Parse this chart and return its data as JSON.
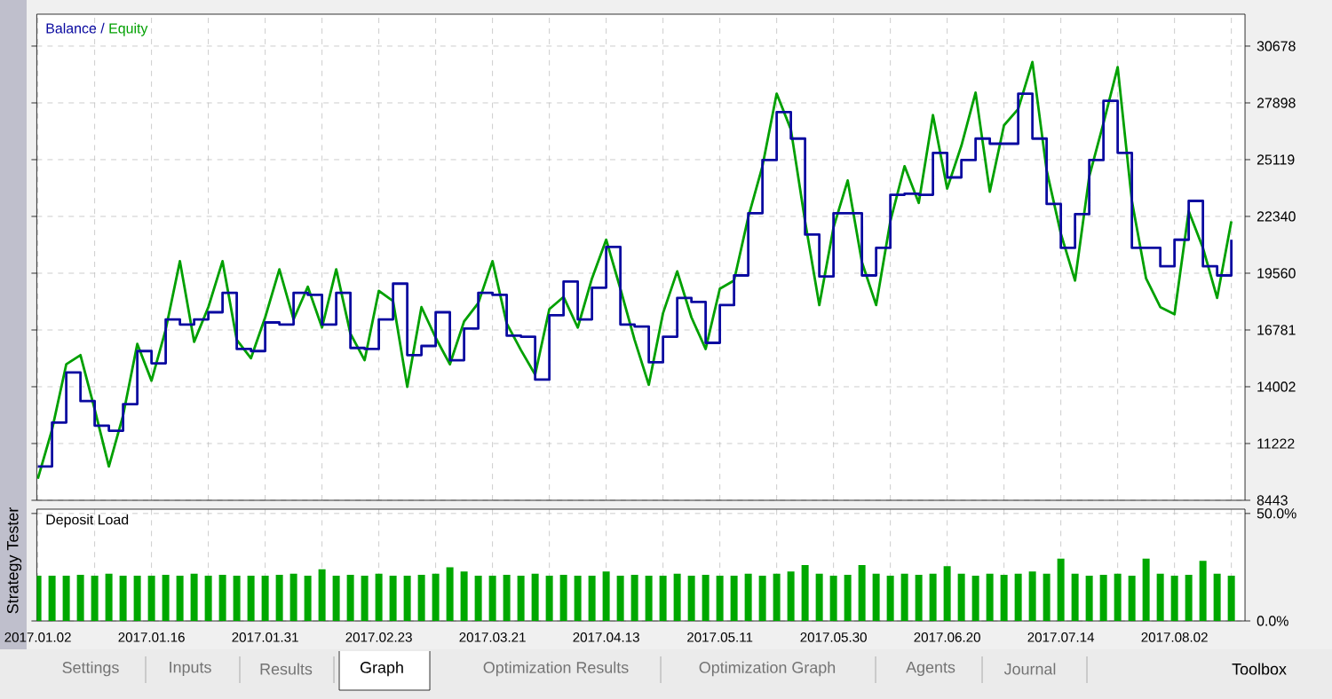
{
  "chart_data": [
    {
      "type": "line",
      "legend": "top left",
      "grid": true,
      "tick_labels": "y",
      "annotations": [
        "/"
      ],
      "categories": [
        null,
        null,
        null,
        null,
        null,
        null,
        null,
        null,
        null,
        null,
        null,
        null,
        null,
        null,
        null,
        null,
        null,
        null,
        null,
        null,
        null,
        null,
        null,
        null,
        null,
        null,
        null,
        null,
        null,
        null,
        null,
        null,
        null,
        null,
        null,
        null,
        null,
        null,
        null,
        null,
        null,
        null,
        null,
        null,
        null,
        null,
        null,
        null,
        null,
        null,
        null,
        null,
        null,
        null,
        null,
        null,
        null,
        null,
        null,
        null,
        null,
        null,
        null,
        null,
        null,
        null,
        null,
        null,
        null,
        null,
        null,
        null,
        null,
        null,
        null,
        null,
        null,
        null,
        null,
        null,
        null,
        null,
        null,
        null,
        null
      ],
      "ylim": [
        8443,
        32240
      ],
      "yticks": [
        8443,
        11222,
        14002,
        16781,
        19560,
        22340,
        25119,
        27898,
        30678
      ],
      "series": [
        {
          "name": "Balance",
          "type": "step",
          "color": "#0a0aa0",
          "values": [
            10100,
            12250,
            14700,
            13300,
            12100,
            11850,
            13150,
            15750,
            15150,
            17300,
            17050,
            17300,
            17650,
            18600,
            15850,
            15750,
            17150,
            17050,
            18600,
            18500,
            17050,
            18600,
            15900,
            15850,
            17300,
            19050,
            15550,
            16000,
            17650,
            15300,
            16850,
            18600,
            18500,
            16500,
            16450,
            14350,
            17500,
            19150,
            17300,
            18850,
            20850,
            17050,
            16950,
            15200,
            16450,
            18350,
            18150,
            16150,
            18000,
            19450,
            22500,
            25100,
            27450,
            26150,
            21450,
            19400,
            22500,
            22500,
            19450,
            20800,
            23400,
            23450,
            23400,
            25450,
            24250,
            25100,
            26150,
            25900,
            25900,
            28350,
            26150,
            22950,
            20800,
            22450,
            25100,
            28000,
            25450,
            20800,
            20800,
            19900,
            21200,
            23100,
            19900,
            19450,
            21200
          ]
        },
        {
          "name": "Equity",
          "type": "line",
          "color": "#00a000",
          "values": [
            9500,
            11900,
            15100,
            15550,
            12900,
            10100,
            12600,
            16100,
            14300,
            16800,
            20150,
            16200,
            17900,
            20150,
            16300,
            15400,
            17400,
            19750,
            17300,
            18900,
            16900,
            19750,
            16600,
            15300,
            18700,
            18200,
            14000,
            17900,
            16400,
            15100,
            17200,
            18100,
            20150,
            17100,
            15800,
            14600,
            17800,
            18400,
            16900,
            19300,
            21200,
            18800,
            16300,
            14100,
            17600,
            19650,
            17400,
            15850,
            18800,
            19200,
            22300,
            24800,
            28350,
            26600,
            22100,
            18000,
            21800,
            24100,
            20100,
            18000,
            22100,
            24800,
            23000,
            27300,
            23700,
            25800,
            28400,
            23550,
            26800,
            27600,
            29900,
            24600,
            21500,
            19200,
            24300,
            26900,
            29650,
            23100,
            19300,
            17900,
            17550,
            22600,
            20800,
            18350,
            22100
          ]
        }
      ]
    },
    {
      "type": "bar",
      "title": "Deposit Load",
      "grid": true,
      "color": "#00a800",
      "categories": [
        "2017.01.02",
        null,
        null,
        null,
        null,
        null,
        null,
        null,
        "2017.01.16",
        null,
        null,
        null,
        null,
        null,
        null,
        null,
        "2017.01.31",
        null,
        null,
        null,
        null,
        null,
        null,
        null,
        "2017.02.23",
        null,
        null,
        null,
        null,
        null,
        null,
        null,
        "2017.03.21",
        null,
        null,
        null,
        null,
        null,
        null,
        null,
        "2017.04.13",
        null,
        null,
        null,
        null,
        null,
        null,
        null,
        "2017.05.11",
        null,
        null,
        null,
        null,
        null,
        null,
        null,
        "2017.05.30",
        null,
        null,
        null,
        null,
        null,
        null,
        null,
        "2017.06.20",
        null,
        null,
        null,
        null,
        null,
        null,
        null,
        "2017.07.14",
        null,
        null,
        null,
        null,
        null,
        null,
        null,
        "2017.08.02",
        null,
        null,
        null,
        null
      ],
      "ylim": [
        0,
        52
      ],
      "yticks": [
        {
          "value": 0,
          "label": "0.0%"
        },
        {
          "value": 50,
          "label": "50.0%"
        }
      ],
      "values": [
        21,
        21,
        21,
        21.5,
        21,
        22,
        21,
        21,
        21,
        21.5,
        21,
        22,
        21,
        21.5,
        21,
        21,
        21,
        21.5,
        22,
        21,
        24,
        21,
        21.5,
        21,
        22,
        21,
        21,
        21.5,
        22,
        25,
        23,
        21,
        21,
        21.5,
        21,
        22,
        21,
        21.5,
        21,
        21,
        23,
        21,
        21.5,
        21,
        21,
        22,
        21,
        21.5,
        21,
        21,
        22,
        21,
        22,
        23,
        26,
        22,
        21,
        21.5,
        26,
        22,
        21,
        22,
        21.5,
        22,
        25.5,
        22,
        21,
        22,
        21.5,
        22,
        23,
        22,
        29,
        22,
        21,
        21.5,
        22,
        21,
        29,
        22,
        21,
        21.5,
        28,
        22,
        21
      ]
    },
    {
      "type": "other",
      "annotations": [
        "Strategy Tester",
        "Settings",
        "Inputs",
        "Results",
        "Graph",
        "Optimization Results",
        "Optimization Graph",
        "Agents",
        "Journal",
        "Toolbox"
      ]
    }
  ]
}
